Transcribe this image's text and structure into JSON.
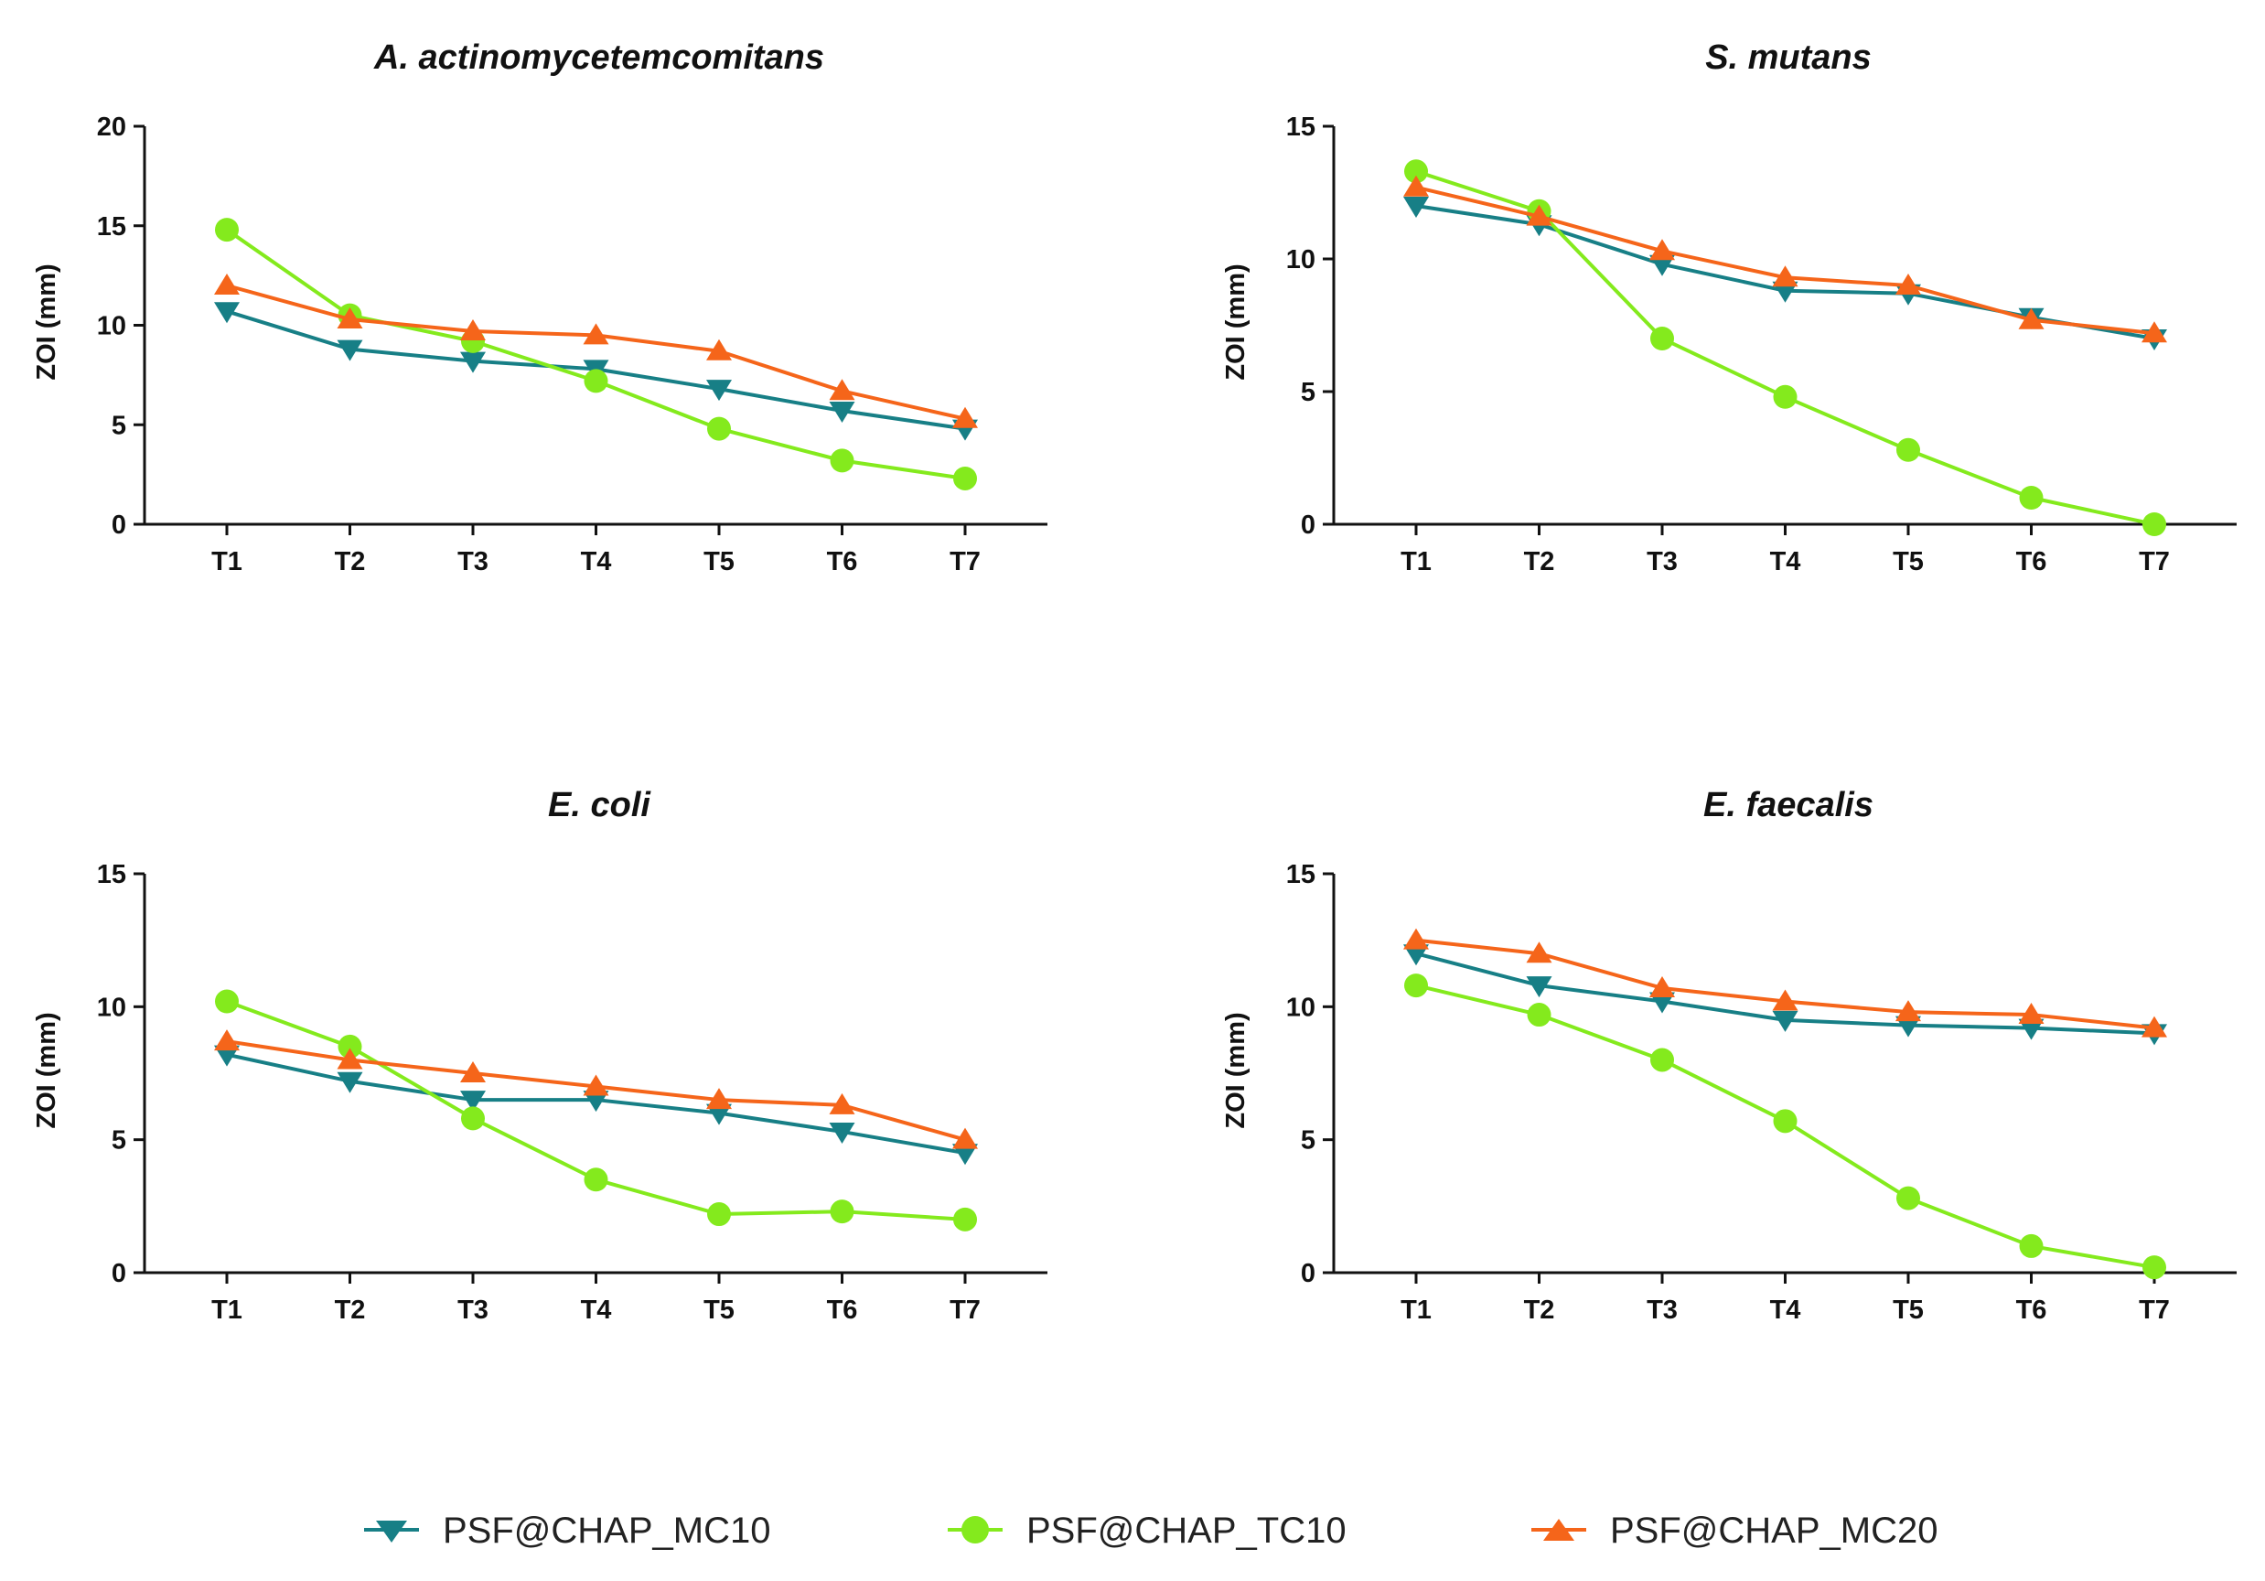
{
  "legend": [
    {
      "key": "mc10",
      "label": "PSF@CHAP_MC10",
      "color": "#177f86",
      "marker": "triangle-down"
    },
    {
      "key": "tc10",
      "label": "PSF@CHAP_TC10",
      "color": "#84ea1d",
      "marker": "circle"
    },
    {
      "key": "mc20",
      "label": "PSF@CHAP_MC20",
      "color": "#f5651a",
      "marker": "triangle-up"
    }
  ],
  "chart_data": [
    {
      "type": "line",
      "title": "A. actinomycetemcomitans",
      "xlabel": "",
      "ylabel": "ZOI (mm)",
      "categories": [
        "T1",
        "T2",
        "T3",
        "T4",
        "T5",
        "T6",
        "T7"
      ],
      "ylim": [
        0,
        20
      ],
      "yticks": [
        0,
        5,
        10,
        15,
        20
      ],
      "series": [
        {
          "key": "mc10",
          "name": "PSF@CHAP_MC10",
          "values": [
            10.7,
            8.8,
            8.2,
            7.8,
            6.8,
            5.7,
            4.8
          ]
        },
        {
          "key": "tc10",
          "name": "PSF@CHAP_TC10",
          "values": [
            14.8,
            10.5,
            9.2,
            7.2,
            4.8,
            3.2,
            2.3
          ]
        },
        {
          "key": "mc20",
          "name": "PSF@CHAP_MC20",
          "values": [
            12.0,
            10.3,
            9.7,
            9.5,
            8.7,
            6.7,
            5.3
          ]
        }
      ]
    },
    {
      "type": "line",
      "title": "S. mutans",
      "xlabel": "",
      "ylabel": "ZOI (mm)",
      "categories": [
        "T1",
        "T2",
        "T3",
        "T4",
        "T5",
        "T6",
        "T7"
      ],
      "ylim": [
        0,
        15
      ],
      "yticks": [
        0,
        5,
        10,
        15
      ],
      "series": [
        {
          "key": "mc10",
          "name": "PSF@CHAP_MC10",
          "values": [
            12.0,
            11.3,
            9.8,
            8.8,
            8.7,
            7.8,
            7.0
          ]
        },
        {
          "key": "tc10",
          "name": "PSF@CHAP_TC10",
          "values": [
            13.3,
            11.8,
            7.0,
            4.8,
            2.8,
            1.0,
            0.0
          ]
        },
        {
          "key": "mc20",
          "name": "PSF@CHAP_MC20",
          "values": [
            12.7,
            11.6,
            10.3,
            9.3,
            9.0,
            7.7,
            7.2
          ]
        }
      ]
    },
    {
      "type": "line",
      "title": "E. coli",
      "xlabel": "",
      "ylabel": "ZOI (mm)",
      "categories": [
        "T1",
        "T2",
        "T3",
        "T4",
        "T5",
        "T6",
        "T7"
      ],
      "ylim": [
        0,
        15
      ],
      "yticks": [
        0,
        5,
        10,
        15
      ],
      "series": [
        {
          "key": "mc10",
          "name": "PSF@CHAP_MC10",
          "values": [
            8.2,
            7.2,
            6.5,
            6.5,
            6.0,
            5.3,
            4.5
          ]
        },
        {
          "key": "tc10",
          "name": "PSF@CHAP_TC10",
          "values": [
            10.2,
            8.5,
            5.8,
            3.5,
            2.2,
            2.3,
            2.0
          ]
        },
        {
          "key": "mc20",
          "name": "PSF@CHAP_MC20",
          "values": [
            8.7,
            8.0,
            7.5,
            7.0,
            6.5,
            6.3,
            5.0
          ]
        }
      ]
    },
    {
      "type": "line",
      "title": "E. faecalis",
      "xlabel": "",
      "ylabel": "ZOI (mm)",
      "categories": [
        "T1",
        "T2",
        "T3",
        "T4",
        "T5",
        "T6",
        "T7"
      ],
      "ylim": [
        0,
        15
      ],
      "yticks": [
        0,
        5,
        10,
        15
      ],
      "series": [
        {
          "key": "mc10",
          "name": "PSF@CHAP_MC10",
          "values": [
            12.0,
            10.8,
            10.2,
            9.5,
            9.3,
            9.2,
            9.0
          ]
        },
        {
          "key": "tc10",
          "name": "PSF@CHAP_TC10",
          "values": [
            10.8,
            9.7,
            8.0,
            5.7,
            2.8,
            1.0,
            0.2
          ]
        },
        {
          "key": "mc20",
          "name": "PSF@CHAP_MC20",
          "values": [
            12.5,
            12.0,
            10.7,
            10.2,
            9.8,
            9.7,
            9.2
          ]
        }
      ]
    }
  ]
}
